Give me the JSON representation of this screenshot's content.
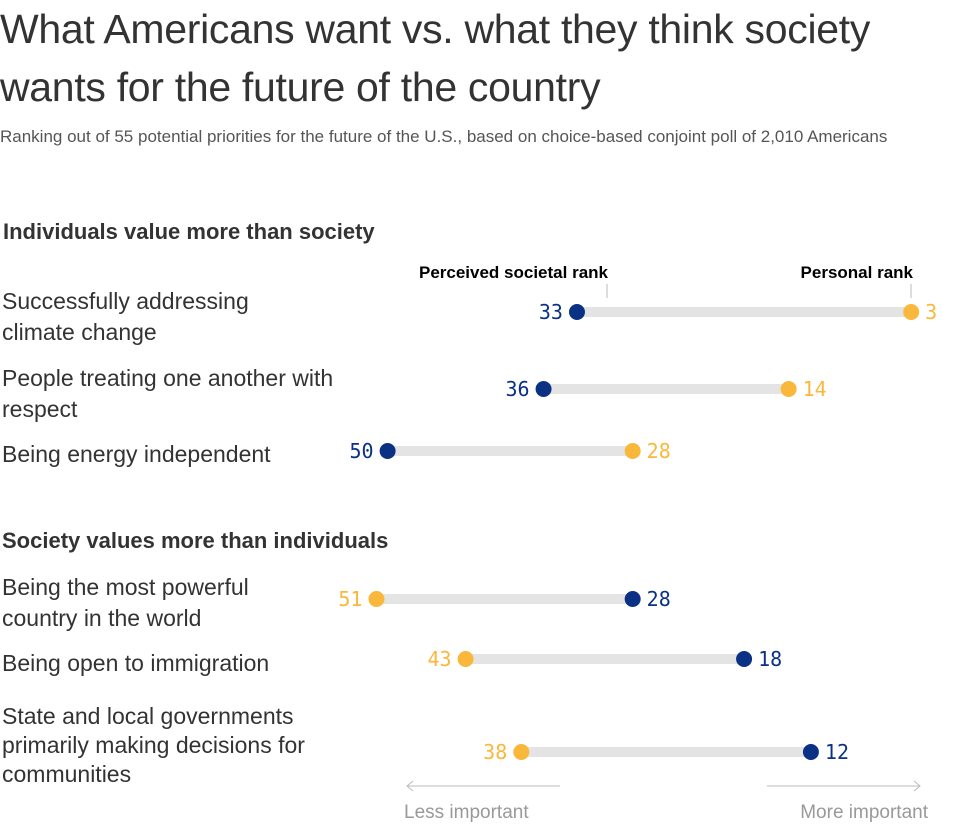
{
  "title": "What Americans want vs. what they think society wants for the future of the country",
  "subtitle": "Ranking out of 55 potential priorities for the future of the U.S., based on choice-based conjoint poll of 2,010 Americans",
  "colors": {
    "societal": "#0a3184",
    "personal": "#f9b83b",
    "bar": "#e4e4e4",
    "axis": "#bbbbbb"
  },
  "legend": {
    "societal": "Perceived societal rank",
    "personal": "Personal rank"
  },
  "axis": {
    "left_label": "Less important",
    "right_label": "More important"
  },
  "chart_data": {
    "type": "dumbbell",
    "title": "What Americans want vs. what they think society wants for the future of the country",
    "subtitle": "Ranking out of 55 potential priorities for the future of the U.S., based on choice-based conjoint poll of 2,010 Americans",
    "series": [
      {
        "name": "Perceived societal rank",
        "key": "societal"
      },
      {
        "name": "Personal rank",
        "key": "personal"
      }
    ],
    "x_direction": "rank (lower rank = more important, plotted to the right)",
    "groups": [
      {
        "title": "Individuals value more than society",
        "rows": [
          {
            "label": "Successfully addressing climate change",
            "societal": 33,
            "personal": 3
          },
          {
            "label": "People treating one another with respect",
            "societal": 36,
            "personal": 14
          },
          {
            "label": "Being energy independent",
            "societal": 50,
            "personal": 28
          }
        ]
      },
      {
        "title": "Society values more than individuals",
        "rows": [
          {
            "label": "Being the most powerful country in the world",
            "societal": 28,
            "personal": 51
          },
          {
            "label": "Being open to immigration",
            "societal": 18,
            "personal": 43
          },
          {
            "label": "State and local governments primarily making decisions for communities",
            "societal": 12,
            "personal": 38
          }
        ]
      }
    ]
  }
}
